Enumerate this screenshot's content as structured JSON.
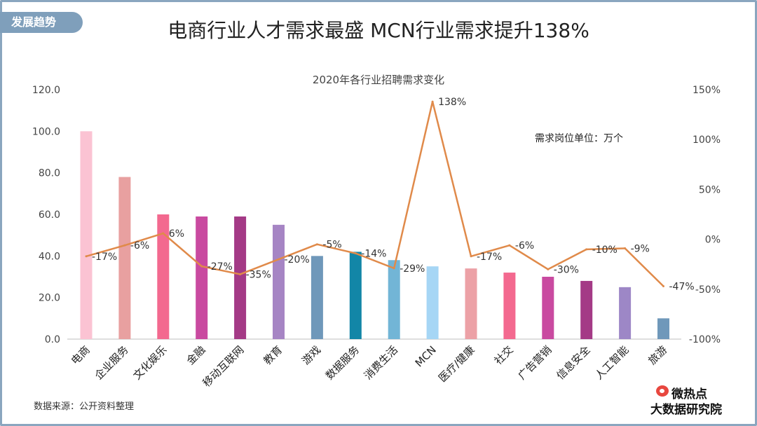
{
  "header": {
    "tag": "发展趋势",
    "title": "电商行业人才需求最盛 MCN行业需求提升138%"
  },
  "footer": {
    "source": "数据来源：公开资料整理",
    "logo_line1": "微热点",
    "logo_line2": "大数据研究院"
  },
  "chart_data": {
    "type": "bar",
    "title": "2020年各行业招聘需求变化",
    "annotation": "需求岗位单位：万个",
    "categories": [
      "电商",
      "企业服务",
      "文化娱乐",
      "金融",
      "移动互联网",
      "教育",
      "游戏",
      "数据服务",
      "消费生活",
      "MCN",
      "医疗/健康",
      "社交",
      "广告营销",
      "信息安全",
      "人工智能",
      "旅游"
    ],
    "series": [
      {
        "type": "bar",
        "axis": "left",
        "values": [
          100,
          78,
          60,
          59,
          59,
          55,
          40,
          42,
          38,
          35,
          34,
          32,
          30,
          28,
          25,
          10
        ],
        "colors": [
          "#fbc3d3",
          "#e8a0a0",
          "#f3698f",
          "#c94aa0",
          "#a43a86",
          "#a685c4",
          "#6f98ba",
          "#1286a7",
          "#72b5d6",
          "#a6d6f5",
          "#eca1a6",
          "#f3698f",
          "#c94aa0",
          "#a43a86",
          "#9d87c6",
          "#6f98ba"
        ]
      },
      {
        "type": "line",
        "axis": "right",
        "values": [
          -17,
          -6,
          6,
          -27,
          -35,
          -20,
          -5,
          -14,
          -29,
          138,
          -17,
          -6,
          -30,
          -10,
          -9,
          -47
        ],
        "labels": [
          "-17%",
          "-6%",
          "6%",
          "-27%",
          "-35%",
          "-20%",
          "-5%",
          "-14%",
          "-29%",
          "138%",
          "-17%",
          "-6%",
          "-30%",
          "-10%",
          "-9%",
          "-47%"
        ],
        "color": "#e08a4a"
      }
    ],
    "y_left": {
      "min": 0,
      "max": 120,
      "ticks": [
        "0.0",
        "20.0",
        "40.0",
        "60.0",
        "80.0",
        "100.0",
        "120.0"
      ]
    },
    "y_right": {
      "min": -100,
      "max": 150,
      "ticks": [
        "-100%",
        "-50%",
        "0%",
        "50%",
        "100%",
        "150%"
      ]
    },
    "grid": false,
    "legend": "none"
  }
}
